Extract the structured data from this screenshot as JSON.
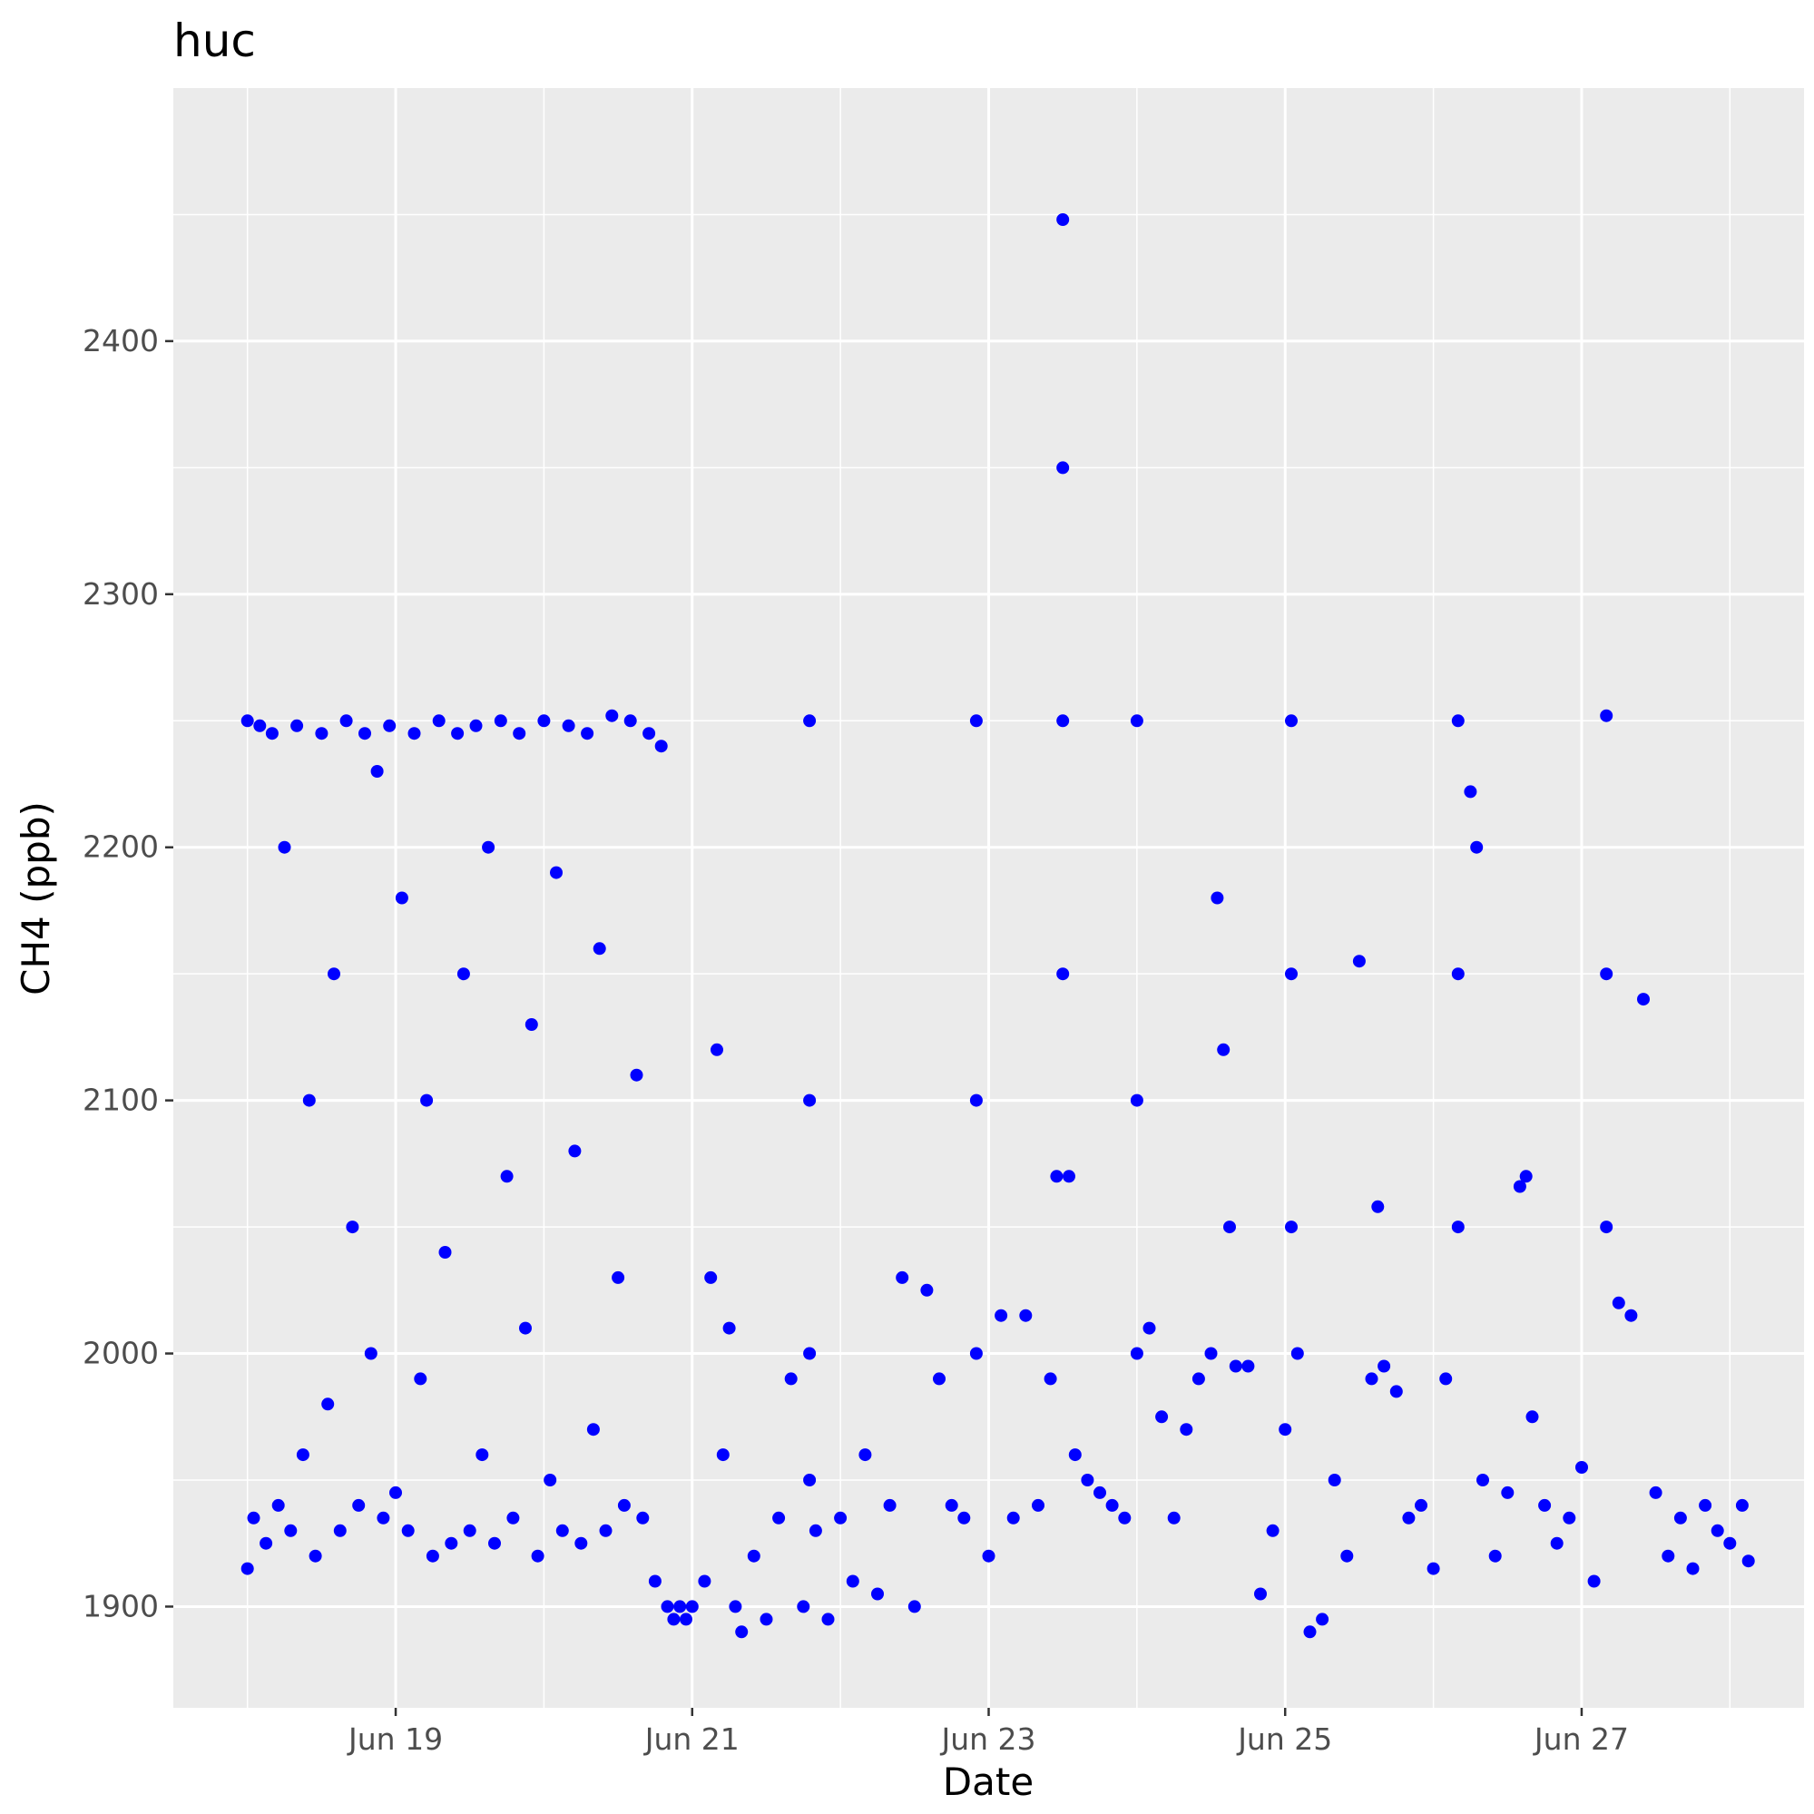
{
  "chart_data": {
    "type": "scatter",
    "title": "huc",
    "xlabel": "Date",
    "ylabel": "CH4 (ppb)",
    "x_axis": {
      "kind": "date",
      "range": [
        "2019-06-17T12:00",
        "2019-06-28T12:00"
      ],
      "ticks": [
        {
          "value": "2019-06-19",
          "label": "Jun 19"
        },
        {
          "value": "2019-06-21",
          "label": "Jun 21"
        },
        {
          "value": "2019-06-23",
          "label": "Jun 23"
        },
        {
          "value": "2019-06-25",
          "label": "Jun 25"
        },
        {
          "value": "2019-06-27",
          "label": "Jun 27"
        }
      ]
    },
    "y_axis": {
      "range": [
        1860,
        2500
      ],
      "ticks": [
        1900,
        2000,
        2100,
        2200,
        2300,
        2400
      ]
    },
    "grid": true,
    "legend": "none",
    "point_color": "#0000ff",
    "panel_color": "#ebebeb",
    "series": [
      {
        "points": [
          [
            "2019-06-18T00:00",
            1915
          ],
          [
            "2019-06-18T00:00",
            2250
          ],
          [
            "2019-06-18T01:00",
            1935
          ],
          [
            "2019-06-18T02:00",
            2248
          ],
          [
            "2019-06-18T03:00",
            1925
          ],
          [
            "2019-06-18T04:00",
            2245
          ],
          [
            "2019-06-18T05:00",
            1940
          ],
          [
            "2019-06-18T06:00",
            2200
          ],
          [
            "2019-06-18T07:00",
            1930
          ],
          [
            "2019-06-18T08:00",
            2248
          ],
          [
            "2019-06-18T09:00",
            1960
          ],
          [
            "2019-06-18T10:00",
            2100
          ],
          [
            "2019-06-18T11:00",
            1920
          ],
          [
            "2019-06-18T12:00",
            2245
          ],
          [
            "2019-06-18T13:00",
            1980
          ],
          [
            "2019-06-18T14:00",
            2150
          ],
          [
            "2019-06-18T15:00",
            1930
          ],
          [
            "2019-06-18T16:00",
            2250
          ],
          [
            "2019-06-18T17:00",
            2050
          ],
          [
            "2019-06-18T18:00",
            1940
          ],
          [
            "2019-06-18T19:00",
            2245
          ],
          [
            "2019-06-18T20:00",
            2000
          ],
          [
            "2019-06-18T21:00",
            2230
          ],
          [
            "2019-06-18T22:00",
            1935
          ],
          [
            "2019-06-18T23:00",
            2248
          ],
          [
            "2019-06-19T00:00",
            1945
          ],
          [
            "2019-06-19T01:00",
            2180
          ],
          [
            "2019-06-19T02:00",
            1930
          ],
          [
            "2019-06-19T03:00",
            2245
          ],
          [
            "2019-06-19T04:00",
            1990
          ],
          [
            "2019-06-19T05:00",
            2100
          ],
          [
            "2019-06-19T06:00",
            1920
          ],
          [
            "2019-06-19T07:00",
            2250
          ],
          [
            "2019-06-19T08:00",
            2040
          ],
          [
            "2019-06-19T09:00",
            1925
          ],
          [
            "2019-06-19T10:00",
            2245
          ],
          [
            "2019-06-19T11:00",
            2150
          ],
          [
            "2019-06-19T12:00",
            1930
          ],
          [
            "2019-06-19T13:00",
            2248
          ],
          [
            "2019-06-19T14:00",
            1960
          ],
          [
            "2019-06-19T15:00",
            2200
          ],
          [
            "2019-06-19T16:00",
            1925
          ],
          [
            "2019-06-19T17:00",
            2250
          ],
          [
            "2019-06-19T18:00",
            2070
          ],
          [
            "2019-06-19T19:00",
            1935
          ],
          [
            "2019-06-19T20:00",
            2245
          ],
          [
            "2019-06-19T21:00",
            2010
          ],
          [
            "2019-06-19T22:00",
            2130
          ],
          [
            "2019-06-19T23:00",
            1920
          ],
          [
            "2019-06-20T00:00",
            2250
          ],
          [
            "2019-06-20T01:00",
            1950
          ],
          [
            "2019-06-20T02:00",
            2190
          ],
          [
            "2019-06-20T03:00",
            1930
          ],
          [
            "2019-06-20T04:00",
            2248
          ],
          [
            "2019-06-20T05:00",
            2080
          ],
          [
            "2019-06-20T06:00",
            1925
          ],
          [
            "2019-06-20T07:00",
            2245
          ],
          [
            "2019-06-20T08:00",
            1970
          ],
          [
            "2019-06-20T09:00",
            2160
          ],
          [
            "2019-06-20T10:00",
            1930
          ],
          [
            "2019-06-20T11:00",
            2252
          ],
          [
            "2019-06-20T12:00",
            2030
          ],
          [
            "2019-06-20T13:00",
            1940
          ],
          [
            "2019-06-20T14:00",
            2250
          ],
          [
            "2019-06-20T15:00",
            2110
          ],
          [
            "2019-06-20T16:00",
            1935
          ],
          [
            "2019-06-20T17:00",
            2245
          ],
          [
            "2019-06-20T18:00",
            1910
          ],
          [
            "2019-06-20T19:00",
            2240
          ],
          [
            "2019-06-20T20:00",
            1900
          ],
          [
            "2019-06-20T21:00",
            1895
          ],
          [
            "2019-06-20T22:00",
            1900
          ],
          [
            "2019-06-20T23:00",
            1895
          ],
          [
            "2019-06-21T00:00",
            1900
          ],
          [
            "2019-06-21T02:00",
            1910
          ],
          [
            "2019-06-21T03:00",
            2030
          ],
          [
            "2019-06-21T04:00",
            2120
          ],
          [
            "2019-06-21T05:00",
            1960
          ],
          [
            "2019-06-21T06:00",
            2010
          ],
          [
            "2019-06-21T07:00",
            1900
          ],
          [
            "2019-06-21T08:00",
            1890
          ],
          [
            "2019-06-21T10:00",
            1920
          ],
          [
            "2019-06-21T12:00",
            1895
          ],
          [
            "2019-06-21T14:00",
            1935
          ],
          [
            "2019-06-21T16:00",
            1990
          ],
          [
            "2019-06-21T18:00",
            1900
          ],
          [
            "2019-06-21T20:00",
            1930
          ],
          [
            "2019-06-21T22:00",
            1895
          ],
          [
            "2019-06-22T00:00",
            1935
          ],
          [
            "2019-06-21T19:00",
            2250
          ],
          [
            "2019-06-21T19:00",
            2100
          ],
          [
            "2019-06-21T19:00",
            2000
          ],
          [
            "2019-06-21T19:00",
            1950
          ],
          [
            "2019-06-22T02:00",
            1910
          ],
          [
            "2019-06-22T04:00",
            1960
          ],
          [
            "2019-06-22T06:00",
            1905
          ],
          [
            "2019-06-22T08:00",
            1940
          ],
          [
            "2019-06-22T10:00",
            2030
          ],
          [
            "2019-06-22T12:00",
            1900
          ],
          [
            "2019-06-22T14:00",
            2025
          ],
          [
            "2019-06-22T16:00",
            1990
          ],
          [
            "2019-06-22T18:00",
            1940
          ],
          [
            "2019-06-22T20:00",
            1935
          ],
          [
            "2019-06-22T22:00",
            2250
          ],
          [
            "2019-06-22T22:00",
            2100
          ],
          [
            "2019-06-22T22:00",
            2000
          ],
          [
            "2019-06-23T00:00",
            1920
          ],
          [
            "2019-06-23T02:00",
            2015
          ],
          [
            "2019-06-23T04:00",
            1935
          ],
          [
            "2019-06-23T06:00",
            2015
          ],
          [
            "2019-06-23T08:00",
            1940
          ],
          [
            "2019-06-23T10:00",
            1990
          ],
          [
            "2019-06-23T11:00",
            2070
          ],
          [
            "2019-06-23T12:00",
            2448
          ],
          [
            "2019-06-23T12:00",
            2350
          ],
          [
            "2019-06-23T12:00",
            2250
          ],
          [
            "2019-06-23T12:00",
            2150
          ],
          [
            "2019-06-23T13:00",
            2070
          ],
          [
            "2019-06-23T14:00",
            1960
          ],
          [
            "2019-06-23T16:00",
            1950
          ],
          [
            "2019-06-23T18:00",
            1945
          ],
          [
            "2019-06-23T20:00",
            1940
          ],
          [
            "2019-06-23T22:00",
            1935
          ],
          [
            "2019-06-24T00:00",
            2250
          ],
          [
            "2019-06-24T00:00",
            2100
          ],
          [
            "2019-06-24T00:00",
            2000
          ],
          [
            "2019-06-24T02:00",
            2010
          ],
          [
            "2019-06-24T04:00",
            1975
          ],
          [
            "2019-06-24T06:00",
            1935
          ],
          [
            "2019-06-24T08:00",
            1970
          ],
          [
            "2019-06-24T10:00",
            1990
          ],
          [
            "2019-06-24T12:00",
            2000
          ],
          [
            "2019-06-24T13:00",
            2180
          ],
          [
            "2019-06-24T14:00",
            2120
          ],
          [
            "2019-06-24T15:00",
            2050
          ],
          [
            "2019-06-24T16:00",
            1995
          ],
          [
            "2019-06-24T18:00",
            1995
          ],
          [
            "2019-06-24T20:00",
            1905
          ],
          [
            "2019-06-24T22:00",
            1930
          ],
          [
            "2019-06-25T00:00",
            1970
          ],
          [
            "2019-06-25T01:00",
            2250
          ],
          [
            "2019-06-25T01:00",
            2150
          ],
          [
            "2019-06-25T01:00",
            2050
          ],
          [
            "2019-06-25T02:00",
            2000
          ],
          [
            "2019-06-25T04:00",
            1890
          ],
          [
            "2019-06-25T06:00",
            1895
          ],
          [
            "2019-06-25T08:00",
            1950
          ],
          [
            "2019-06-25T10:00",
            1920
          ],
          [
            "2019-06-25T12:00",
            2155
          ],
          [
            "2019-06-25T14:00",
            1990
          ],
          [
            "2019-06-25T15:00",
            2058
          ],
          [
            "2019-06-25T16:00",
            1995
          ],
          [
            "2019-06-25T18:00",
            1985
          ],
          [
            "2019-06-25T20:00",
            1935
          ],
          [
            "2019-06-25T22:00",
            1940
          ],
          [
            "2019-06-26T00:00",
            1915
          ],
          [
            "2019-06-26T02:00",
            1990
          ],
          [
            "2019-06-26T04:00",
            2250
          ],
          [
            "2019-06-26T04:00",
            2150
          ],
          [
            "2019-06-26T04:00",
            2050
          ],
          [
            "2019-06-26T06:00",
            2222
          ],
          [
            "2019-06-26T07:00",
            2200
          ],
          [
            "2019-06-26T08:00",
            1950
          ],
          [
            "2019-06-26T10:00",
            1920
          ],
          [
            "2019-06-26T12:00",
            1945
          ],
          [
            "2019-06-26T14:00",
            2066
          ],
          [
            "2019-06-26T15:00",
            2070
          ],
          [
            "2019-06-26T16:00",
            1975
          ],
          [
            "2019-06-26T18:00",
            1940
          ],
          [
            "2019-06-26T20:00",
            1925
          ],
          [
            "2019-06-26T22:00",
            1935
          ],
          [
            "2019-06-27T00:00",
            1955
          ],
          [
            "2019-06-27T02:00",
            1910
          ],
          [
            "2019-06-27T04:00",
            2252
          ],
          [
            "2019-06-27T04:00",
            2150
          ],
          [
            "2019-06-27T04:00",
            2050
          ],
          [
            "2019-06-27T06:00",
            2020
          ],
          [
            "2019-06-27T08:00",
            2015
          ],
          [
            "2019-06-27T10:00",
            2140
          ],
          [
            "2019-06-27T12:00",
            1945
          ],
          [
            "2019-06-27T14:00",
            1920
          ],
          [
            "2019-06-27T16:00",
            1935
          ],
          [
            "2019-06-27T18:00",
            1915
          ],
          [
            "2019-06-27T20:00",
            1940
          ],
          [
            "2019-06-27T22:00",
            1930
          ],
          [
            "2019-06-28T00:00",
            1925
          ],
          [
            "2019-06-28T02:00",
            1940
          ],
          [
            "2019-06-28T03:00",
            1918
          ]
        ]
      }
    ]
  }
}
